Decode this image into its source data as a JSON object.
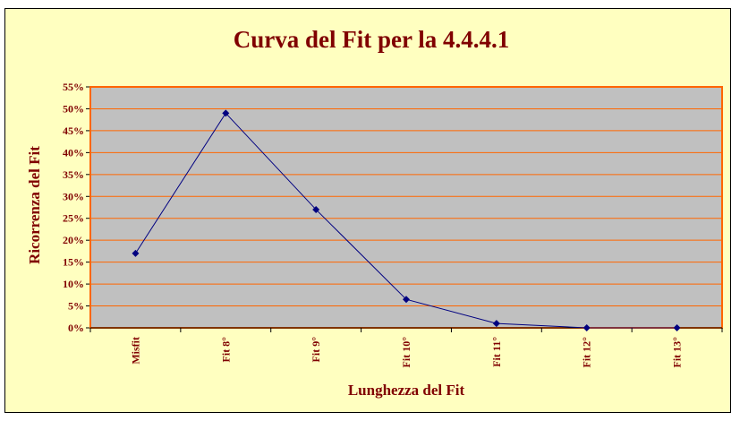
{
  "chart_data": {
    "type": "line",
    "title": "Curva del Fit per la 4.4.4.1",
    "xlabel": "Lunghezza del Fit",
    "ylabel": "Ricorrenza del Fit",
    "categories": [
      "Misfit",
      "Fit 8°",
      "Fit 9°",
      "Fit 10°",
      "Fit 11°",
      "Fit 12°",
      "Fit 13°"
    ],
    "series": [
      {
        "values": [
          17,
          49,
          27,
          6.5,
          1,
          0,
          0
        ]
      }
    ],
    "ylim": [
      0,
      55
    ],
    "yticks": [
      0,
      5,
      10,
      15,
      20,
      25,
      30,
      35,
      40,
      45,
      50,
      55
    ],
    "y_tick_format": "percent",
    "grid": "horizontal",
    "legend": "none",
    "colors": {
      "background": "#ffffc0",
      "plot_area": "#c0c0c0",
      "plot_border": "#ff6600",
      "gridlines": "#ff6600",
      "series_line": "#000080",
      "text": "#800000"
    }
  }
}
